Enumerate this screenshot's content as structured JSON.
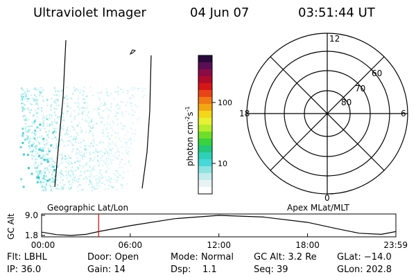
{
  "header": {
    "title": "Ultraviolet Imager",
    "date": "04 Jun 07",
    "time": "03:51:44 UT"
  },
  "colorbar": {
    "label_main": "photon cm",
    "label_exp1": "-2",
    "label_mid": "s",
    "label_exp2": "-1",
    "ticks": [
      "100",
      "10"
    ],
    "colors": [
      "#2a0a3a",
      "#5a0f55",
      "#8a0b45",
      "#b00a2a",
      "#d41616",
      "#e84418",
      "#f07a16",
      "#f3a614",
      "#f2d618",
      "#e7f033",
      "#b5ec2c",
      "#6fde2a",
      "#3ad23e",
      "#23c77a",
      "#2fd0b8",
      "#48d8d8",
      "#8ee2e2",
      "#c4ecec",
      "#e8f4f4",
      "#ffffff"
    ]
  },
  "polar": {
    "mlt_labels": [
      "12",
      "18",
      "6",
      "0"
    ],
    "lat_labels": [
      "60",
      "70",
      "80"
    ]
  },
  "map": {
    "left_label": "Geographic Lat/Lon",
    "right_label": "Apex MLat/MLT",
    "aurora_color": "#2fd0d0"
  },
  "chart_data": {
    "type": "line",
    "title": "",
    "ylabel": "GC Alt",
    "yticks": [
      "9.0",
      "1.8"
    ],
    "xticks": [
      "00:00",
      "06:00",
      "12:00",
      "18:00",
      "23:59"
    ],
    "x_hours": [
      0,
      1,
      2,
      3,
      3.86,
      6,
      9,
      12,
      15,
      18,
      20,
      21.5,
      23,
      23.98
    ],
    "y_re": [
      3.0,
      2.1,
      1.8,
      2.2,
      3.2,
      5.3,
      7.8,
      9.0,
      8.4,
      6.5,
      4.2,
      2.6,
      2.2,
      3.2
    ],
    "ylim": [
      1.8,
      9.0
    ],
    "xlim": [
      0,
      23.98
    ],
    "marker_hour": 3.86,
    "marker_color": "#e00000"
  },
  "footer": {
    "items": [
      {
        "label": "Flt:",
        "value": "LBHL"
      },
      {
        "label": "Door:",
        "value": "Open"
      },
      {
        "label": "Mode:",
        "value": "Normal"
      },
      {
        "label": "GC Alt:",
        "value": "3.2 Re"
      },
      {
        "label": "GLat:",
        "value": "−14.0"
      },
      {
        "label": "IP:",
        "value": "36.0"
      },
      {
        "label": "Gain:",
        "value": "14"
      },
      {
        "label": "Dsp:",
        "value": "1.1"
      },
      {
        "label": "Seq:",
        "value": "39"
      },
      {
        "label": "GLon:",
        "value": "202.8"
      }
    ]
  }
}
